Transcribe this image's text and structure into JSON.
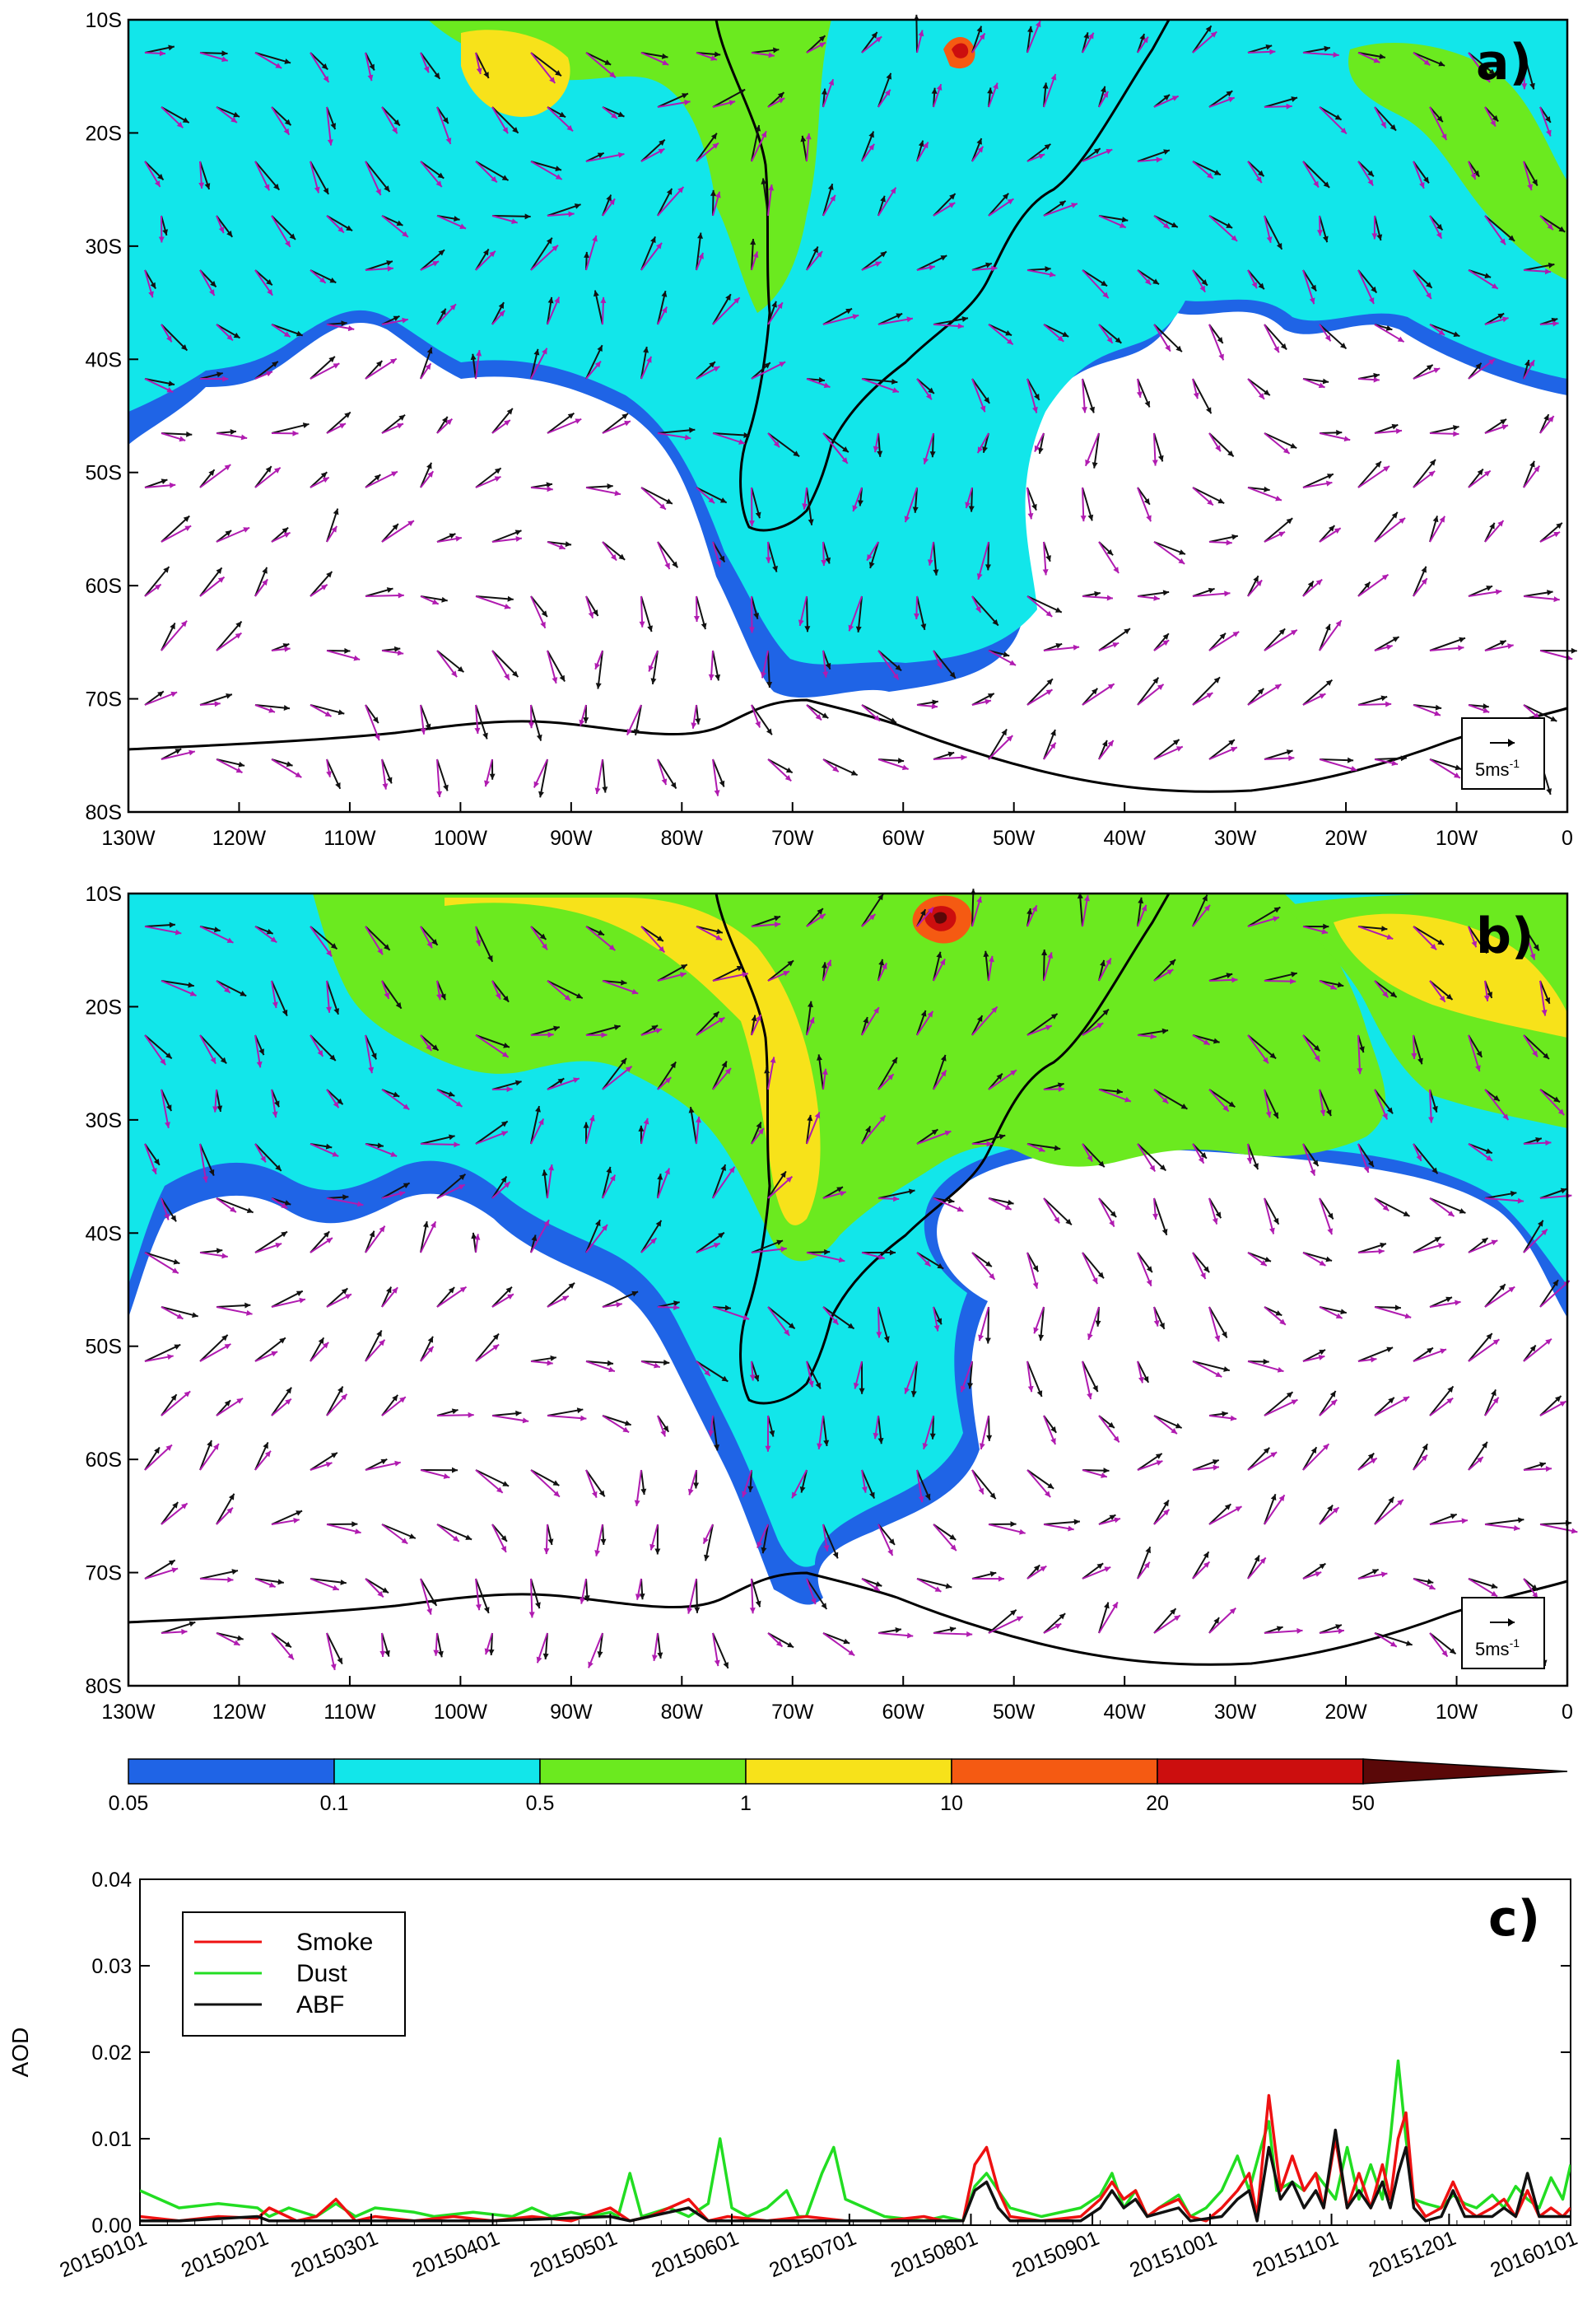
{
  "colors": {
    "level_0": "#1f64e6",
    "level_1": "#12e6ea",
    "level_2": "#6bea1f",
    "level_3": "#f7e21a",
    "level_4": "#f55a12",
    "level_5": "#cc0e0e",
    "level_6": "#5a0808",
    "smoke": "#ee1111",
    "dust": "#22dd22",
    "abf": "#111111",
    "vector_a": "#111111",
    "vector_b": "#b01bb0"
  },
  "maps": [
    {
      "panel_label": "a)",
      "lat_ticks": [
        "10S",
        "20S",
        "30S",
        "40S",
        "50S",
        "60S",
        "70S",
        "80S"
      ],
      "lon_ticks": [
        "130W",
        "120W",
        "110W",
        "100W",
        "90W",
        "80W",
        "70W",
        "60W",
        "50W",
        "40W",
        "30W",
        "20W",
        "10W",
        "0"
      ],
      "ref_vector_label": "5ms",
      "ref_vector_sup": "-1"
    },
    {
      "panel_label": "b)",
      "lat_ticks": [
        "10S",
        "20S",
        "30S",
        "40S",
        "50S",
        "60S",
        "70S",
        "80S"
      ],
      "lon_ticks": [
        "130W",
        "120W",
        "110W",
        "100W",
        "90W",
        "80W",
        "70W",
        "60W",
        "50W",
        "40W",
        "30W",
        "20W",
        "10W",
        "0"
      ],
      "ref_vector_label": "5ms",
      "ref_vector_sup": "-1"
    }
  ],
  "colorbar": {
    "labels": [
      "0.05",
      "0.1",
      "0.5",
      "1",
      "10",
      "20",
      "50"
    ]
  },
  "chart_data": {
    "type": "line",
    "panel_label": "c)",
    "ylabel": "AOD",
    "ylim": [
      0,
      0.04
    ],
    "y_ticks": [
      "0.00",
      "0.01",
      "0.02",
      "0.03",
      "0.04"
    ],
    "x_ticks": [
      "20150101",
      "20150201",
      "20150301",
      "20150401",
      "20150501",
      "20150601",
      "20150701",
      "20150801",
      "20150901",
      "20151001",
      "20151101",
      "20151201",
      "20160101"
    ],
    "legend_position": "top-left",
    "series": [
      {
        "name": "Smoke",
        "points": [
          [
            0,
            0.001
          ],
          [
            10,
            0.0005
          ],
          [
            20,
            0.001
          ],
          [
            30,
            0.0008
          ],
          [
            33,
            0.002
          ],
          [
            40,
            0.0005
          ],
          [
            45,
            0.001
          ],
          [
            50,
            0.003
          ],
          [
            55,
            0.0005
          ],
          [
            60,
            0.001
          ],
          [
            70,
            0.0005
          ],
          [
            80,
            0.001
          ],
          [
            90,
            0.0005
          ],
          [
            100,
            0.001
          ],
          [
            110,
            0.0005
          ],
          [
            120,
            0.002
          ],
          [
            125,
            0.0005
          ],
          [
            130,
            0.001
          ],
          [
            140,
            0.003
          ],
          [
            145,
            0.0005
          ],
          [
            150,
            0.001
          ],
          [
            160,
            0.0005
          ],
          [
            170,
            0.001
          ],
          [
            180,
            0.0005
          ],
          [
            190,
            0.0005
          ],
          [
            200,
            0.001
          ],
          [
            205,
            0.0005
          ],
          [
            210,
            0.0005
          ],
          [
            213,
            0.007
          ],
          [
            216,
            0.009
          ],
          [
            219,
            0.004
          ],
          [
            222,
            0.001
          ],
          [
            230,
            0.0005
          ],
          [
            240,
            0.001
          ],
          [
            245,
            0.003
          ],
          [
            248,
            0.005
          ],
          [
            251,
            0.003
          ],
          [
            254,
            0.004
          ],
          [
            257,
            0.001
          ],
          [
            260,
            0.002
          ],
          [
            265,
            0.003
          ],
          [
            268,
            0.001
          ],
          [
            272,
            0.0005
          ],
          [
            276,
            0.002
          ],
          [
            280,
            0.004
          ],
          [
            283,
            0.006
          ],
          [
            285,
            0.001
          ],
          [
            288,
            0.015
          ],
          [
            291,
            0.004
          ],
          [
            294,
            0.008
          ],
          [
            297,
            0.004
          ],
          [
            300,
            0.006
          ],
          [
            302,
            0.002
          ],
          [
            305,
            0.01
          ],
          [
            308,
            0.002
          ],
          [
            311,
            0.006
          ],
          [
            314,
            0.002
          ],
          [
            317,
            0.007
          ],
          [
            319,
            0.003
          ],
          [
            321,
            0.01
          ],
          [
            323,
            0.013
          ],
          [
            325,
            0.003
          ],
          [
            328,
            0.001
          ],
          [
            332,
            0.002
          ],
          [
            335,
            0.005
          ],
          [
            338,
            0.002
          ],
          [
            341,
            0.001
          ],
          [
            345,
            0.002
          ],
          [
            348,
            0.003
          ],
          [
            351,
            0.001
          ],
          [
            354,
            0.004
          ],
          [
            357,
            0.001
          ],
          [
            360,
            0.002
          ],
          [
            363,
            0.001
          ],
          [
            365,
            0.002
          ]
        ]
      },
      {
        "name": "Dust",
        "points": [
          [
            0,
            0.004
          ],
          [
            5,
            0.003
          ],
          [
            10,
            0.002
          ],
          [
            20,
            0.0025
          ],
          [
            30,
            0.002
          ],
          [
            33,
            0.001
          ],
          [
            38,
            0.002
          ],
          [
            45,
            0.001
          ],
          [
            50,
            0.0025
          ],
          [
            55,
            0.001
          ],
          [
            60,
            0.002
          ],
          [
            70,
            0.0015
          ],
          [
            75,
            0.001
          ],
          [
            85,
            0.0015
          ],
          [
            95,
            0.001
          ],
          [
            100,
            0.002
          ],
          [
            105,
            0.001
          ],
          [
            110,
            0.0015
          ],
          [
            115,
            0.001
          ],
          [
            120,
            0.0015
          ],
          [
            122,
            0.001
          ],
          [
            125,
            0.006
          ],
          [
            128,
            0.001
          ],
          [
            135,
            0.002
          ],
          [
            140,
            0.001
          ],
          [
            145,
            0.0025
          ],
          [
            148,
            0.01
          ],
          [
            151,
            0.002
          ],
          [
            155,
            0.001
          ],
          [
            160,
            0.002
          ],
          [
            165,
            0.004
          ],
          [
            168,
            0.001
          ],
          [
            170,
            0.001
          ],
          [
            174,
            0.006
          ],
          [
            177,
            0.009
          ],
          [
            180,
            0.003
          ],
          [
            185,
            0.002
          ],
          [
            190,
            0.001
          ],
          [
            200,
            0.0005
          ],
          [
            205,
            0.001
          ],
          [
            210,
            0.0005
          ],
          [
            213,
            0.0045
          ],
          [
            216,
            0.006
          ],
          [
            219,
            0.004
          ],
          [
            222,
            0.002
          ],
          [
            230,
            0.001
          ],
          [
            240,
            0.002
          ],
          [
            245,
            0.0035
          ],
          [
            248,
            0.006
          ],
          [
            251,
            0.002
          ],
          [
            254,
            0.004
          ],
          [
            257,
            0.001
          ],
          [
            260,
            0.002
          ],
          [
            265,
            0.0035
          ],
          [
            268,
            0.001
          ],
          [
            272,
            0.002
          ],
          [
            276,
            0.004
          ],
          [
            280,
            0.008
          ],
          [
            283,
            0.004
          ],
          [
            286,
            0.009
          ],
          [
            288,
            0.012
          ],
          [
            290,
            0.004
          ],
          [
            294,
            0.005
          ],
          [
            297,
            0.004
          ],
          [
            300,
            0.006
          ],
          [
            305,
            0.003
          ],
          [
            308,
            0.009
          ],
          [
            311,
            0.003
          ],
          [
            314,
            0.007
          ],
          [
            317,
            0.003
          ],
          [
            319,
            0.01
          ],
          [
            321,
            0.019
          ],
          [
            323,
            0.01
          ],
          [
            325,
            0.003
          ],
          [
            328,
            0.0025
          ],
          [
            332,
            0.002
          ],
          [
            335,
            0.0035
          ],
          [
            338,
            0.0025
          ],
          [
            341,
            0.002
          ],
          [
            345,
            0.0035
          ],
          [
            348,
            0.002
          ],
          [
            351,
            0.0045
          ],
          [
            354,
            0.003
          ],
          [
            357,
            0.002
          ],
          [
            360,
            0.0055
          ],
          [
            363,
            0.003
          ],
          [
            365,
            0.007
          ]
        ]
      },
      {
        "name": "ABF",
        "points": [
          [
            0,
            0.0005
          ],
          [
            10,
            0.0005
          ],
          [
            30,
            0.001
          ],
          [
            33,
            0.0005
          ],
          [
            60,
            0.0005
          ],
          [
            90,
            0.0005
          ],
          [
            120,
            0.001
          ],
          [
            125,
            0.0005
          ],
          [
            140,
            0.002
          ],
          [
            145,
            0.0005
          ],
          [
            175,
            0.0005
          ],
          [
            200,
            0.0005
          ],
          [
            210,
            0.0005
          ],
          [
            213,
            0.004
          ],
          [
            216,
            0.005
          ],
          [
            219,
            0.002
          ],
          [
            222,
            0.0005
          ],
          [
            240,
            0.0005
          ],
          [
            245,
            0.002
          ],
          [
            248,
            0.004
          ],
          [
            251,
            0.002
          ],
          [
            254,
            0.003
          ],
          [
            257,
            0.001
          ],
          [
            265,
            0.002
          ],
          [
            268,
            0.0005
          ],
          [
            276,
            0.001
          ],
          [
            280,
            0.003
          ],
          [
            283,
            0.004
          ],
          [
            285,
            0.0005
          ],
          [
            288,
            0.009
          ],
          [
            291,
            0.003
          ],
          [
            294,
            0.005
          ],
          [
            297,
            0.002
          ],
          [
            300,
            0.004
          ],
          [
            302,
            0.002
          ],
          [
            305,
            0.011
          ],
          [
            308,
            0.002
          ],
          [
            311,
            0.004
          ],
          [
            314,
            0.002
          ],
          [
            317,
            0.005
          ],
          [
            319,
            0.002
          ],
          [
            321,
            0.006
          ],
          [
            323,
            0.009
          ],
          [
            325,
            0.002
          ],
          [
            328,
            0.0005
          ],
          [
            332,
            0.001
          ],
          [
            335,
            0.004
          ],
          [
            338,
            0.001
          ],
          [
            345,
            0.001
          ],
          [
            348,
            0.002
          ],
          [
            351,
            0.001
          ],
          [
            354,
            0.006
          ],
          [
            357,
            0.001
          ],
          [
            360,
            0.001
          ],
          [
            365,
            0.001
          ]
        ]
      }
    ]
  }
}
